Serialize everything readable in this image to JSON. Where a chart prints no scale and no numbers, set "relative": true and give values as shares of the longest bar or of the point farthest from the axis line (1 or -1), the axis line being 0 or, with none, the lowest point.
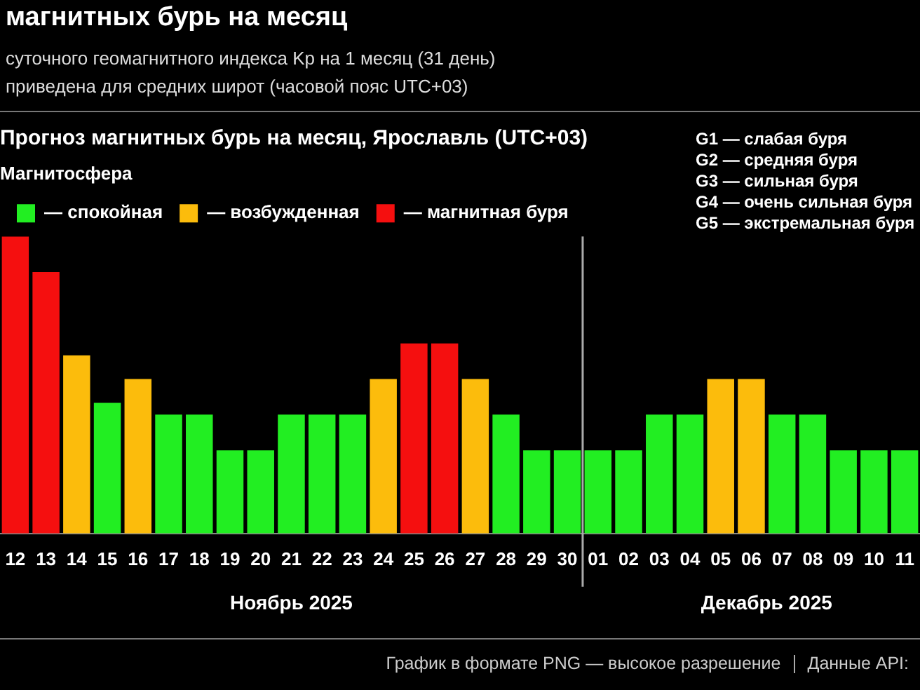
{
  "chart_data": {
    "type": "bar",
    "title": "Прогноз магнитных бурь на месяц, Ярославль (UTC+03)",
    "relative": true,
    "legend": "top left",
    "legend_title": "Магнитосфера",
    "categories": [
      "12",
      "13",
      "14",
      "15",
      "16",
      "17",
      "18",
      "19",
      "20",
      "21",
      "22",
      "23",
      "24",
      "25",
      "26",
      "27",
      "28",
      "29",
      "30",
      "01",
      "02",
      "03",
      "04",
      "05",
      "06",
      "07",
      "08",
      "09",
      "10",
      "11"
    ],
    "series": [
      {
        "name": "— спокойная",
        "color": "#22ee22",
        "values": [
          null,
          null,
          null,
          0.44,
          null,
          0.4,
          0.4,
          0.28,
          0.28,
          0.4,
          0.4,
          0.4,
          null,
          null,
          null,
          null,
          0.4,
          0.28,
          0.28,
          0.28,
          0.28,
          0.4,
          0.4,
          null,
          null,
          0.4,
          0.4,
          0.28,
          0.28,
          0.28
        ]
      },
      {
        "name": "— возбужденная",
        "color": "#fcbc0c",
        "values": [
          null,
          null,
          0.6,
          null,
          0.52,
          null,
          null,
          null,
          null,
          null,
          null,
          null,
          0.52,
          null,
          null,
          0.52,
          null,
          null,
          null,
          null,
          null,
          null,
          null,
          0.52,
          0.52,
          null,
          null,
          null,
          null,
          null
        ]
      },
      {
        "name": "— магнитная буря",
        "color": "#f50f0f",
        "values": [
          1,
          0.88,
          null,
          null,
          null,
          null,
          null,
          null,
          null,
          null,
          null,
          null,
          null,
          0.64,
          0.64,
          null,
          null,
          null,
          null,
          null,
          null,
          null,
          null,
          null,
          null,
          null,
          null,
          null,
          null,
          null
        ]
      }
    ],
    "annotations": [
      "Ноябрь 2025",
      "Декабрь 2025",
      "G1 — слабая буря",
      "G2 — средняя буря",
      "G3 — сильная буря",
      "G4 — очень сильная буря",
      "G5 — экстремальная буря",
      "магнитных бурь на месяц",
      "суточного геомагнитного индекса Kp на 1 месяц (31 день)",
      "приведена для средних широт (часовой пояс UTC+03)",
      "График в формате PNG — высокое разрешение",
      "Данные API:"
    ]
  }
}
